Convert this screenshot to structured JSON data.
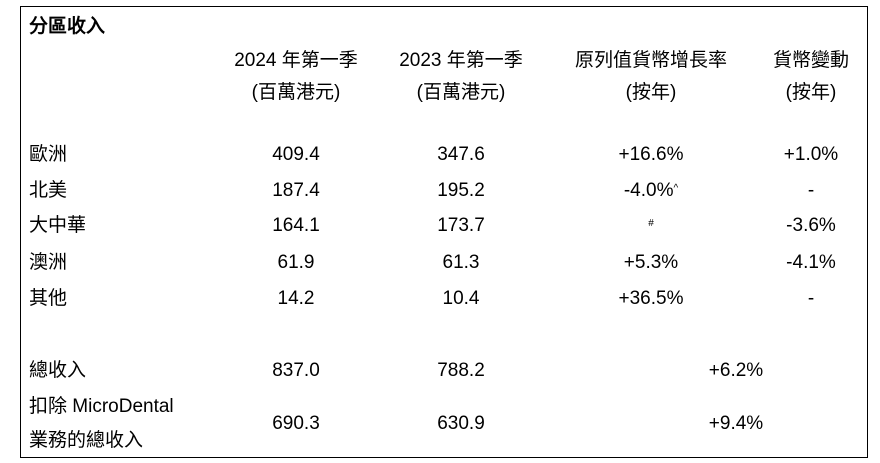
{
  "title": "分區收入",
  "headers": {
    "col1": {
      "line1": "2024 年第一季",
      "line2": "(百萬港元)"
    },
    "col2": {
      "line1": "2023 年第一季",
      "line2": "(百萬港元)"
    },
    "col3": {
      "line1": "原列值貨幣增長率",
      "line2": "(按年)"
    },
    "col4": {
      "line1": "貨幣變動",
      "line2": "(按年)"
    }
  },
  "rows": [
    {
      "label": "歐洲",
      "q1_2024": "409.4",
      "q1_2023": "347.6",
      "growth": "+16.6%",
      "growth_mark": "",
      "fx": "+1.0%"
    },
    {
      "label": "北美",
      "q1_2024": "187.4",
      "q1_2023": "195.2",
      "growth": "-4.0%",
      "growth_mark": "^",
      "fx": "-"
    },
    {
      "label": "大中華",
      "q1_2024": "164.1",
      "q1_2023": "173.7",
      "growth": "",
      "growth_mark": "#",
      "fx": "-3.6%"
    },
    {
      "label": "澳洲",
      "q1_2024": "61.9",
      "q1_2023": "61.3",
      "growth": "+5.3%",
      "growth_mark": "",
      "fx": "-4.1%"
    },
    {
      "label": "其他",
      "q1_2024": "14.2",
      "q1_2023": "10.4",
      "growth": "+36.5%",
      "growth_mark": "",
      "fx": "-"
    }
  ],
  "totals": [
    {
      "label_line1": "總收入",
      "label_line2": "",
      "q1_2024": "837.0",
      "q1_2023": "788.2",
      "growth": "+6.2%"
    },
    {
      "label_line1": "扣除 MicroDental",
      "label_line2": "業務的總收入",
      "q1_2024": "690.3",
      "q1_2023": "630.9",
      "growth": "+9.4%"
    }
  ]
}
